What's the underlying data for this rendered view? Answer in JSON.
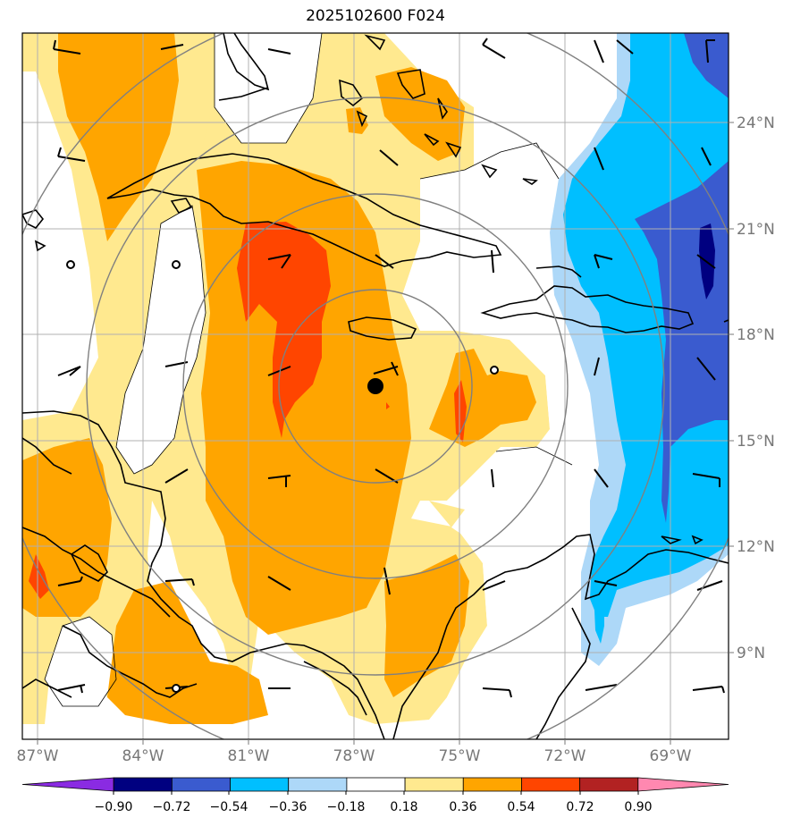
{
  "title": "2025102600 F024",
  "map": {
    "longitude_labels": [
      "87°W",
      "84°W",
      "81°W",
      "78°W",
      "75°W",
      "72°W",
      "69°W"
    ],
    "latitude_labels": [
      "24°N",
      "21°N",
      "18°N",
      "15°N",
      "12°N",
      "9°N"
    ],
    "gridlines": true,
    "center_marker": "black-dot",
    "range_rings": 4
  },
  "colorbar": {
    "tick_labels": [
      "−0.90",
      "−0.72",
      "−0.54",
      "−0.36",
      "−0.18",
      "0.18",
      "0.36",
      "0.54",
      "0.72",
      "0.90"
    ],
    "colors": [
      "#8a2be2",
      "#000080",
      "#3a5bcf",
      "#00bfff",
      "#add8f8",
      "#ffffff",
      "#ffe98f",
      "#ffa500",
      "#ff4500",
      "#b22222",
      "#ff88b0"
    ]
  },
  "colors": {
    "land_outline": "#000000",
    "grid": "#b0b0b0",
    "rings": "#808080"
  }
}
